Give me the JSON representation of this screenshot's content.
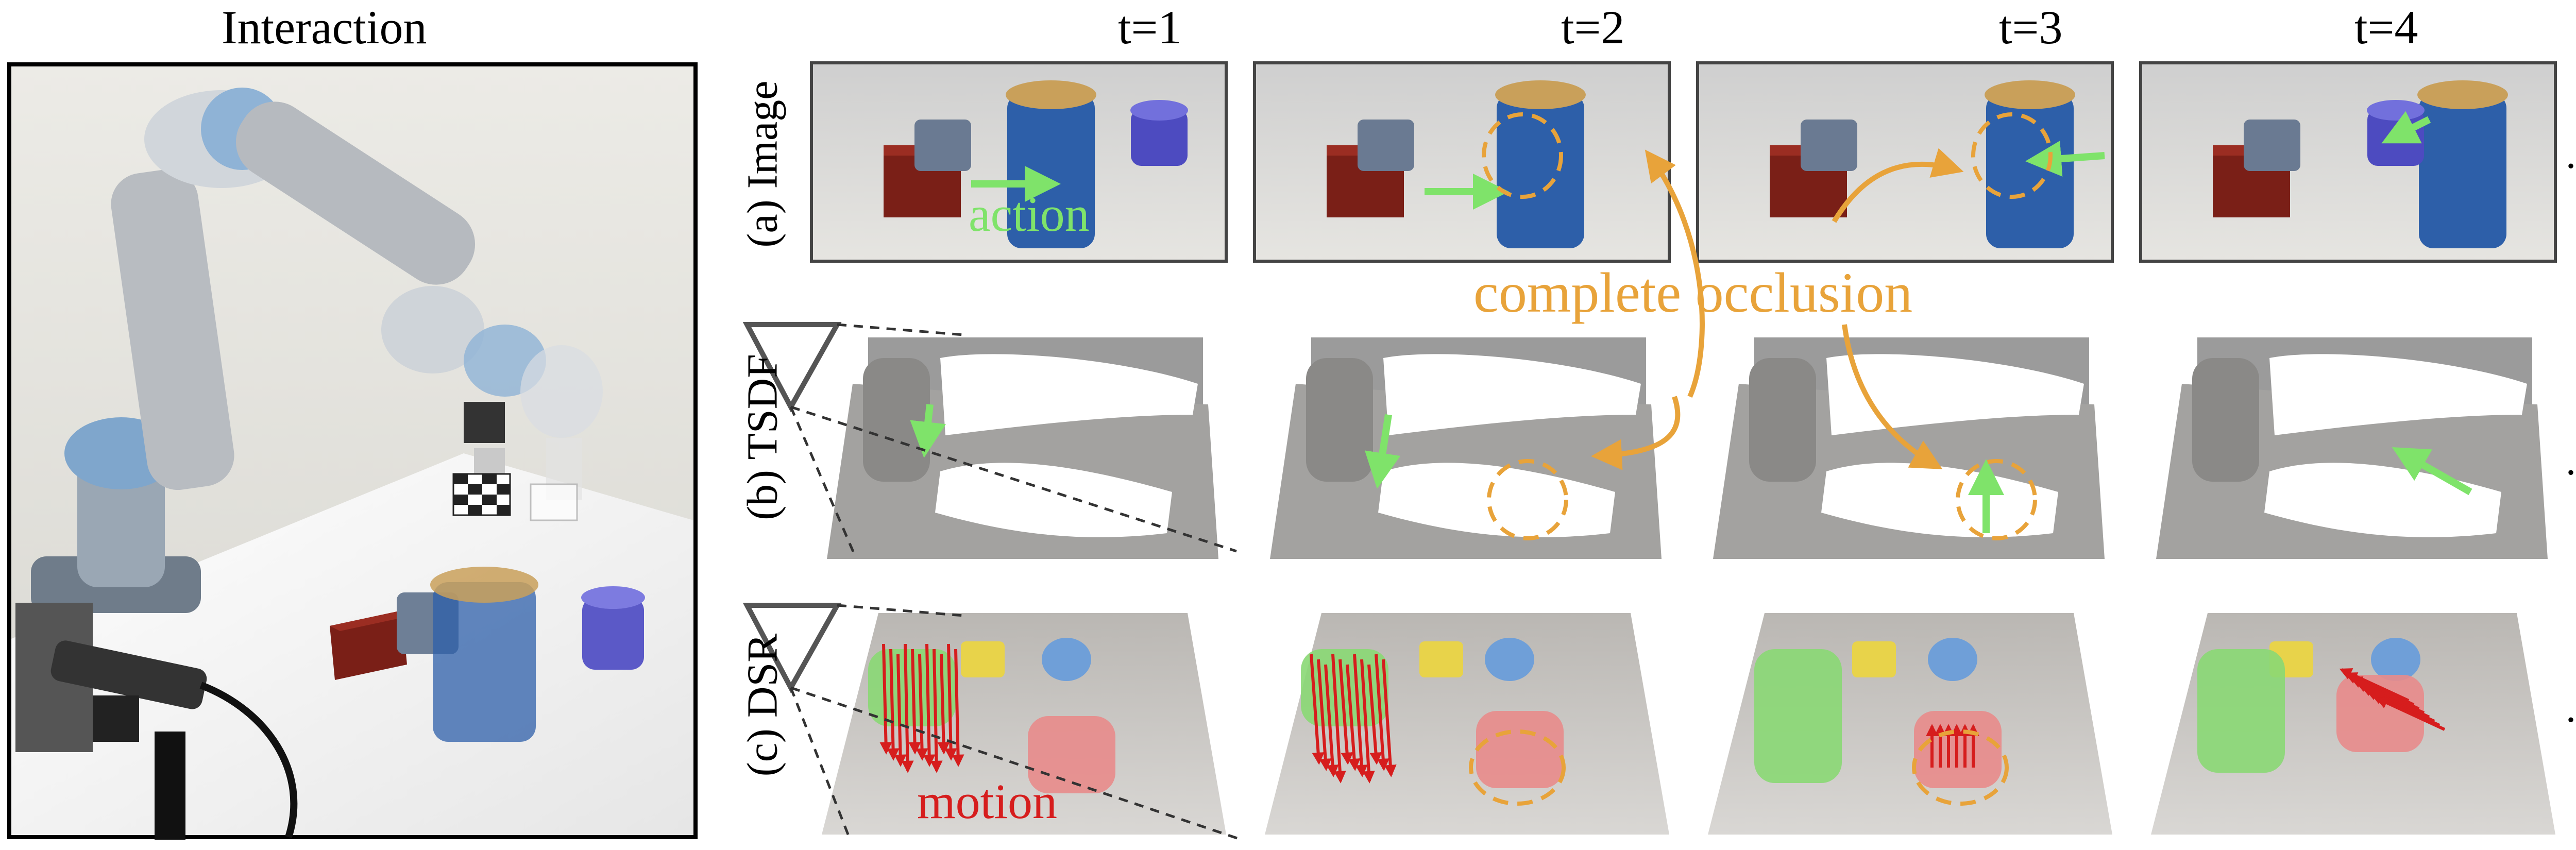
{
  "interaction_title": "Interaction",
  "time_labels": [
    "t=1",
    "t=2",
    "t=3",
    "t=4"
  ],
  "row_labels": [
    "(a) Image",
    "(b) TSDF",
    "(c) DSR"
  ],
  "ellipsis": "...",
  "annotations": {
    "action": "action",
    "complete_occlusion": "complete occlusion",
    "motion": "motion"
  },
  "colors": {
    "action_arrow": "#7fe36a",
    "occlusion": "#e8a33a",
    "motion": "#d61d1d",
    "box_object": "#e8d34a",
    "can_object": "#8ad874",
    "cup_object": "#e88b8b",
    "small_blue": "#6f9fd8",
    "tsdf_surface": "#9b9b9b",
    "dsr_floor": "#c9c6c3"
  }
}
